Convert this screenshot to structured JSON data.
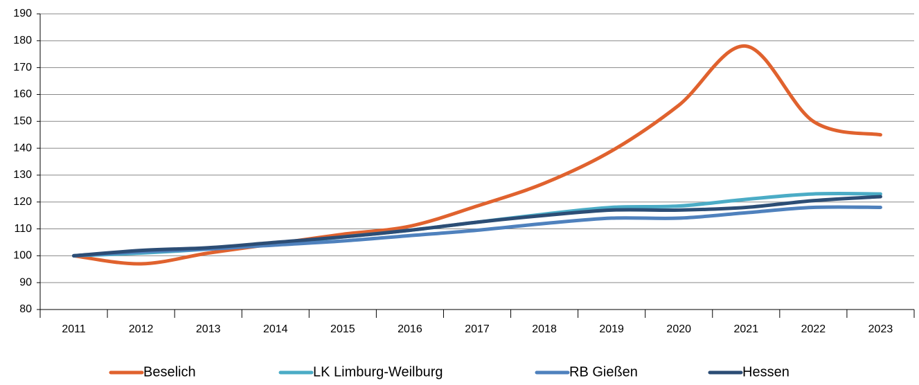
{
  "chart_data": {
    "type": "line",
    "categories": [
      "2011",
      "2012",
      "2013",
      "2014",
      "2015",
      "2016",
      "2017",
      "2018",
      "2019",
      "2020",
      "2021",
      "2022",
      "2023"
    ],
    "series": [
      {
        "name": "Beselich",
        "color": "#e0622e",
        "values": [
          100,
          97,
          101,
          104.5,
          108,
          111,
          118.5,
          127,
          139,
          156,
          178,
          150,
          145
        ]
      },
      {
        "name": "LK Limburg-Weilburg",
        "color": "#4bacc6",
        "values": [
          100,
          101,
          102.5,
          104.5,
          107,
          109.5,
          112.5,
          115.5,
          118,
          118.5,
          121,
          123,
          123
        ]
      },
      {
        "name": "RB Gießen",
        "color": "#4f81bd",
        "values": [
          100,
          101.5,
          102.5,
          104,
          105.5,
          107.5,
          109.5,
          112,
          114,
          114,
          116,
          118,
          118
        ]
      },
      {
        "name": "Hessen",
        "color": "#2c4d75",
        "values": [
          100,
          102,
          103,
          105,
          107,
          109.5,
          112.5,
          115,
          117,
          117,
          118,
          120.5,
          122
        ]
      }
    ],
    "ylim": [
      80,
      190
    ],
    "yticks": [
      80,
      90,
      100,
      110,
      120,
      130,
      140,
      150,
      160,
      170,
      180,
      190
    ],
    "grid": true,
    "legend": "bottom"
  }
}
